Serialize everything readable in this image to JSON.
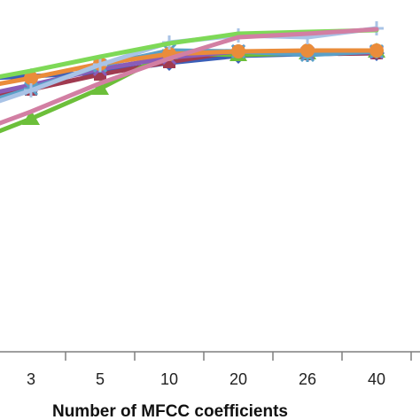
{
  "chart_data": {
    "type": "line",
    "xlabel": "Number of MFCC coefficients",
    "ylabel": "",
    "categories": [
      "3",
      "5",
      "10",
      "20",
      "26",
      "40"
    ],
    "grid": false,
    "legend": "none visible",
    "series": [
      {
        "color": "#3b5fb8",
        "marker": "diamond",
        "values": [
          86,
          82,
          71,
          63,
          61,
          60
        ]
      },
      {
        "color": "#a03a50",
        "marker": "square",
        "values": [
          101,
          84,
          70,
          58,
          61,
          60
        ]
      },
      {
        "color": "#6cbf3a",
        "marker": "triangle",
        "values": [
          134,
          100,
          60,
          62,
          60,
          58
        ]
      },
      {
        "color": "#8a5cb8",
        "marker": "cross",
        "values": [
          96,
          78,
          65,
          58,
          60,
          59
        ]
      },
      {
        "color": "#5aa0c8",
        "marker": "asterisk",
        "values": [
          100,
          74,
          57,
          58,
          62,
          58
        ]
      },
      {
        "color": "#ea8c3a",
        "marker": "circle",
        "values": [
          88,
          72,
          61,
          58,
          57,
          57
        ]
      },
      {
        "color": "#a9c3e6",
        "marker": "plus",
        "values": [
          102,
          73,
          48,
          40,
          42,
          32
        ]
      },
      {
        "color": "#7ed957",
        "marker": "none",
        "values": [
          80,
          64,
          49,
          38,
          36,
          34
        ]
      },
      {
        "color": "#d27fa3",
        "marker": "none",
        "values": [
          126,
          94,
          66,
          42,
          38,
          33
        ]
      }
    ]
  }
}
